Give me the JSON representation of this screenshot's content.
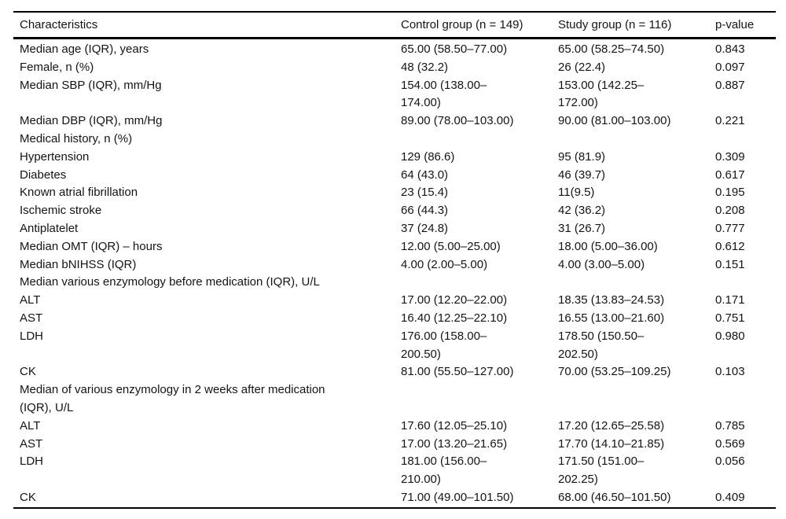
{
  "table": {
    "columns": [
      "Characteristics",
      "Control group (n = 149)",
      "Study group (n = 116)",
      "p-value"
    ],
    "rows": [
      {
        "label": "Median age (IQR), years",
        "control": "65.00 (58.50–77.00)",
        "study": "65.00 (58.25–74.50)",
        "p": "0.843"
      },
      {
        "label": "Female, n (%)",
        "control": "48 (32.2)",
        "study": "26 (22.4)",
        "p": "0.097"
      },
      {
        "label": "Median SBP (IQR), mm/Hg",
        "control": "154.00 (138.00–\n174.00)",
        "study": "153.00 (142.25–\n172.00)",
        "p": "0.887"
      },
      {
        "label": "Median DBP (IQR), mm/Hg",
        "control": "89.00 (78.00–103.00)",
        "study": "90.00 (81.00–103.00)",
        "p": "0.221"
      },
      {
        "label": "Medical history, n (%)",
        "control": "",
        "study": "",
        "p": ""
      },
      {
        "label": "Hypertension",
        "control": "129 (86.6)",
        "study": "95 (81.9)",
        "p": "0.309"
      },
      {
        "label": "Diabetes",
        "control": "64 (43.0)",
        "study": "46 (39.7)",
        "p": "0.617"
      },
      {
        "label": "Known atrial fibrillation",
        "control": "23 (15.4)",
        "study": "11(9.5)",
        "p": "0.195"
      },
      {
        "label": "Ischemic stroke",
        "control": "66 (44.3)",
        "study": "42 (36.2)",
        "p": "0.208"
      },
      {
        "label": "Antiplatelet",
        "control": "37 (24.8)",
        "study": "31 (26.7)",
        "p": "0.777"
      },
      {
        "label": "Median OMT (IQR) – hours",
        "control": "12.00 (5.00–25.00)",
        "study": "18.00 (5.00–36.00)",
        "p": "0.612"
      },
      {
        "label": "Median bNIHSS (IQR)",
        "control": "4.00 (2.00–5.00)",
        "study": "4.00 (3.00–5.00)",
        "p": "0.151"
      },
      {
        "label": "Median various enzymology before medication (IQR), U/L",
        "control": "",
        "study": "",
        "p": ""
      },
      {
        "label": "ALT",
        "control": "17.00 (12.20–22.00)",
        "study": "18.35 (13.83–24.53)",
        "p": "0.171"
      },
      {
        "label": "AST",
        "control": "16.40 (12.25–22.10)",
        "study": "16.55 (13.00–21.60)",
        "p": "0.751"
      },
      {
        "label": "LDH",
        "control": "176.00 (158.00–\n200.50)",
        "study": "178.50 (150.50–\n202.50)",
        "p": "0.980"
      },
      {
        "label": "CK",
        "control": "81.00 (55.50–127.00)",
        "study": "70.00 (53.25–109.25)",
        "p": "0.103"
      },
      {
        "label": "Median of various enzymology in 2 weeks after medication\n(IQR), U/L",
        "control": "",
        "study": "",
        "p": ""
      },
      {
        "label": "ALT",
        "control": "17.60 (12.05–25.10)",
        "study": "17.20 (12.65–25.58)",
        "p": "0.785"
      },
      {
        "label": "AST",
        "control": "17.00 (13.20–21.65)",
        "study": "17.70 (14.10–21.85)",
        "p": "0.569"
      },
      {
        "label": "LDH",
        "control": "181.00 (156.00–\n210.00)",
        "study": "171.50 (151.00–\n202.25)",
        "p": "0.056"
      },
      {
        "label": "CK",
        "control": "71.00 (49.00–101.50)",
        "study": "68.00 (46.50–101.50)",
        "p": "0.409"
      }
    ]
  }
}
